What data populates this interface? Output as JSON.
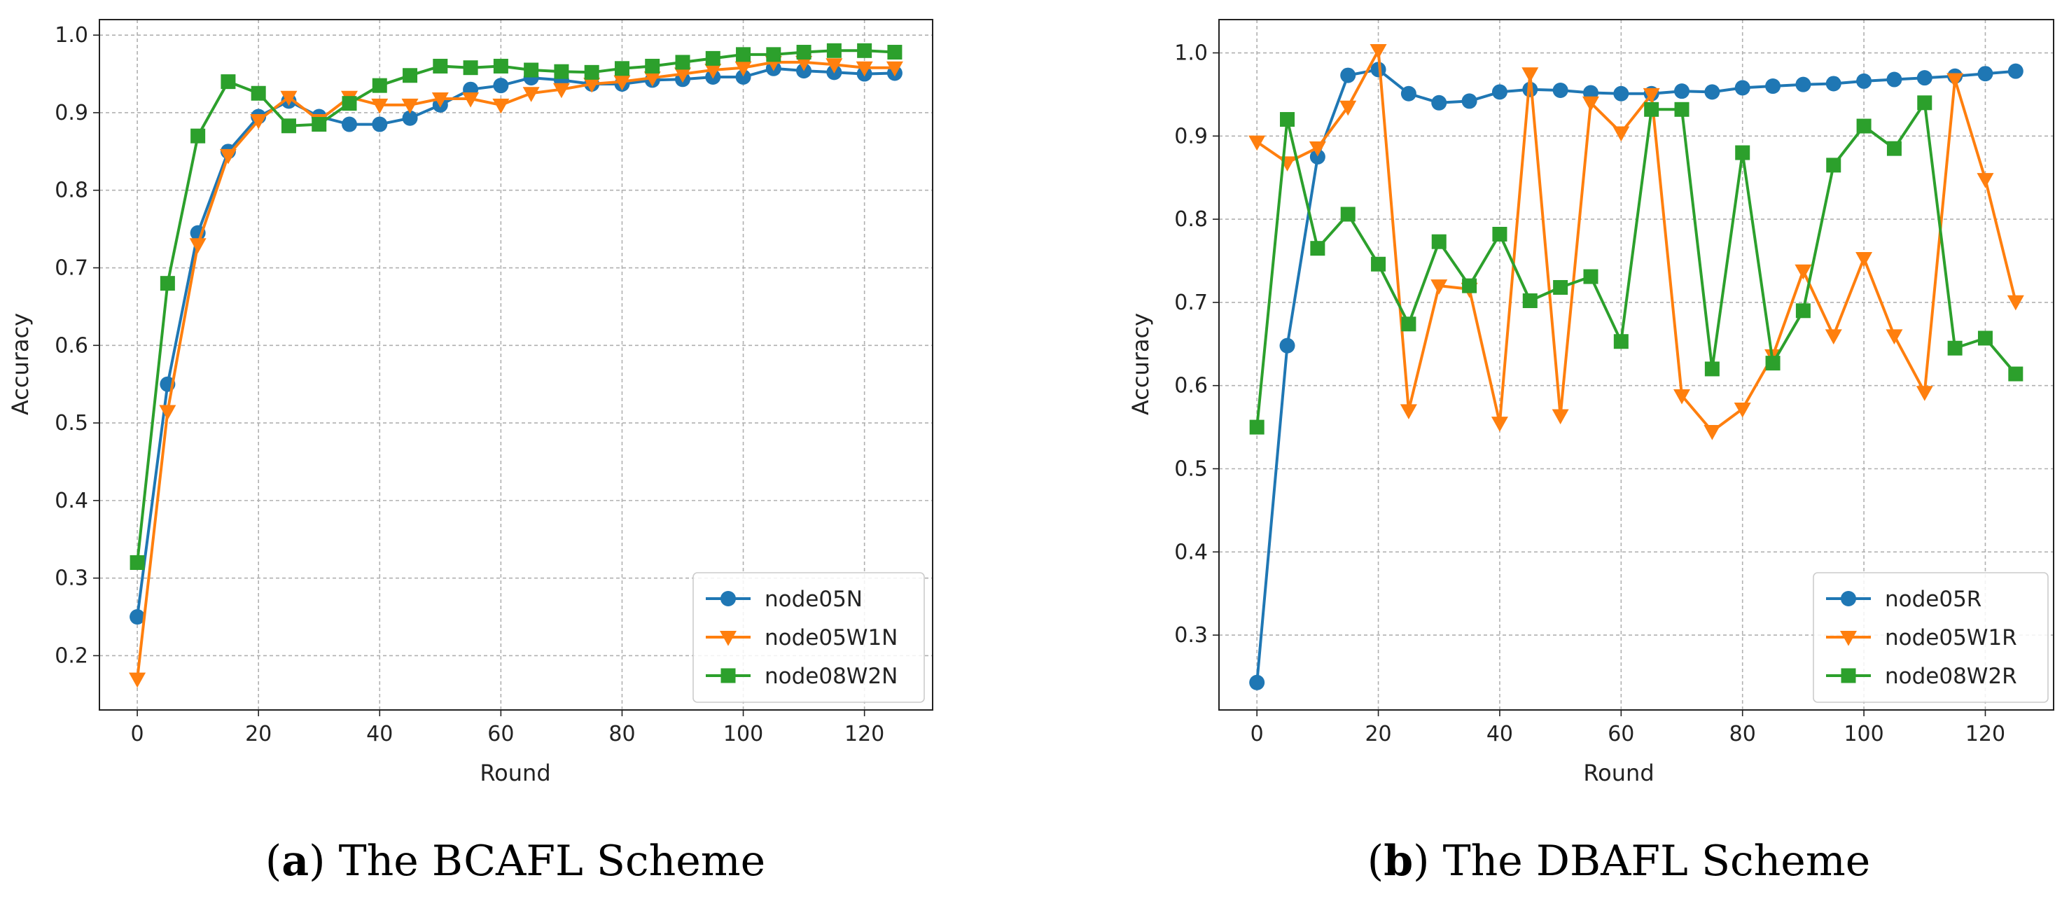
{
  "colors": {
    "blue": "#1f77b4",
    "orange": "#ff7f0e",
    "green": "#2ca02c",
    "grid": "#b0b0b0"
  },
  "chart_data": [
    {
      "type": "line",
      "panel_letter": "a",
      "caption": "The BCAFL Scheme",
      "xlabel": "Round",
      "ylabel": "Accuracy",
      "xlim": [
        -6.25,
        131.25
      ],
      "ylim": [
        0.13,
        1.02
      ],
      "xticks": [
        0,
        20,
        40,
        60,
        80,
        100,
        120
      ],
      "yticks": [
        0.2,
        0.3,
        0.4,
        0.5,
        0.6,
        0.7,
        0.8,
        0.9,
        1.0
      ],
      "grid": true,
      "legend_position": "lower-right",
      "x": [
        0,
        5,
        10,
        15,
        20,
        25,
        30,
        35,
        40,
        45,
        50,
        55,
        60,
        65,
        70,
        75,
        80,
        85,
        90,
        95,
        100,
        105,
        110,
        115,
        120,
        125
      ],
      "series": [
        {
          "name": "node05N",
          "color": "#1f77b4",
          "marker": "circle",
          "values": [
            0.25,
            0.55,
            0.745,
            0.85,
            0.895,
            0.915,
            0.895,
            0.885,
            0.885,
            0.893,
            0.91,
            0.93,
            0.935,
            0.945,
            0.942,
            0.937,
            0.937,
            0.942,
            0.943,
            0.946,
            0.946,
            0.957,
            0.954,
            0.952,
            0.95,
            0.951
          ]
        },
        {
          "name": "node05W1N",
          "color": "#ff7f0e",
          "marker": "triangle-down",
          "values": [
            0.17,
            0.515,
            0.73,
            0.845,
            0.89,
            0.92,
            0.89,
            0.92,
            0.91,
            0.91,
            0.918,
            0.918,
            0.91,
            0.925,
            0.93,
            0.937,
            0.94,
            0.945,
            0.95,
            0.955,
            0.958,
            0.965,
            0.965,
            0.962,
            0.958,
            0.958
          ]
        },
        {
          "name": "node08W2N",
          "color": "#2ca02c",
          "marker": "square",
          "values": [
            0.32,
            0.68,
            0.87,
            0.94,
            0.925,
            0.883,
            0.885,
            0.912,
            0.935,
            0.948,
            0.96,
            0.958,
            0.96,
            0.955,
            0.953,
            0.952,
            0.957,
            0.96,
            0.965,
            0.97,
            0.975,
            0.975,
            0.978,
            0.98,
            0.98,
            0.978
          ]
        }
      ]
    },
    {
      "type": "line",
      "panel_letter": "b",
      "caption": "The DBAFL Scheme",
      "xlabel": "Round",
      "ylabel": "Accuracy",
      "xlim": [
        -6.25,
        131.25
      ],
      "ylim": [
        0.21,
        1.04
      ],
      "xticks": [
        0,
        20,
        40,
        60,
        80,
        100,
        120
      ],
      "yticks": [
        0.3,
        0.4,
        0.5,
        0.6,
        0.7,
        0.8,
        0.9,
        1.0
      ],
      "grid": true,
      "legend_position": "lower-right",
      "x": [
        0,
        5,
        10,
        15,
        20,
        25,
        30,
        35,
        40,
        45,
        50,
        55,
        60,
        65,
        70,
        75,
        80,
        85,
        90,
        95,
        100,
        105,
        110,
        115,
        120,
        125
      ],
      "series": [
        {
          "name": "node05R",
          "color": "#1f77b4",
          "marker": "circle",
          "values": [
            0.243,
            0.648,
            0.875,
            0.973,
            0.98,
            0.951,
            0.94,
            0.942,
            0.953,
            0.956,
            0.955,
            0.952,
            0.951,
            0.951,
            0.954,
            0.953,
            0.958,
            0.96,
            0.962,
            0.963,
            0.966,
            0.968,
            0.97,
            0.972,
            0.975,
            0.978
          ]
        },
        {
          "name": "node05W1R",
          "color": "#ff7f0e",
          "marker": "triangle-down",
          "values": [
            0.893,
            0.868,
            0.886,
            0.935,
            1.003,
            0.57,
            0.72,
            0.716,
            0.555,
            0.975,
            0.564,
            0.94,
            0.904,
            0.95,
            0.588,
            0.545,
            0.572,
            0.636,
            0.738,
            0.66,
            0.753,
            0.66,
            0.592,
            0.968,
            0.848,
            0.701
          ]
        },
        {
          "name": "node08W2R",
          "color": "#2ca02c",
          "marker": "square",
          "values": [
            0.55,
            0.92,
            0.765,
            0.806,
            0.746,
            0.674,
            0.773,
            0.72,
            0.782,
            0.702,
            0.718,
            0.731,
            0.653,
            0.932,
            0.932,
            0.62,
            0.88,
            0.627,
            0.69,
            0.865,
            0.912,
            0.885,
            0.94,
            0.645,
            0.657,
            0.614
          ]
        }
      ]
    }
  ]
}
